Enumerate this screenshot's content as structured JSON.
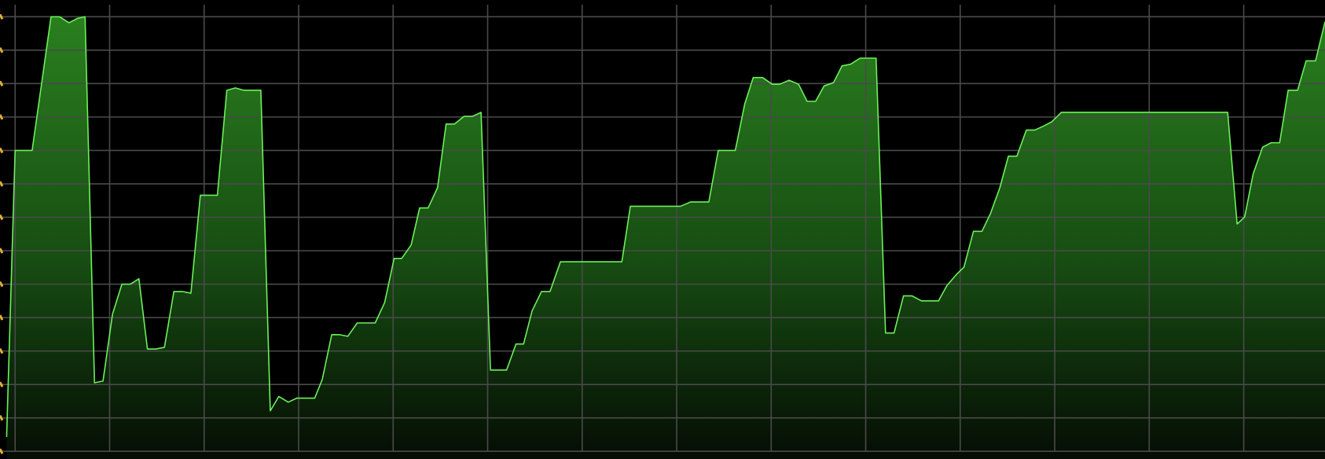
{
  "chart_data": {
    "type": "area",
    "color": "#6cf05a",
    "grid": true,
    "xlim": [
      -0.16,
      13.86
    ],
    "ylim": [
      -0.23,
      13.5
    ],
    "xticks": [
      0,
      1,
      2,
      3,
      4,
      5,
      6,
      7,
      8,
      9,
      10,
      11,
      12,
      13
    ],
    "yticks": [
      0,
      1,
      2,
      3,
      4,
      5,
      6,
      7,
      8,
      9,
      10,
      11,
      12,
      13
    ],
    "x": [
      -0.09,
      0,
      0.18,
      0.38,
      0.47,
      0.57,
      0.66,
      0.74,
      0.84,
      0.93,
      1.03,
      1.13,
      1.22,
      1.31,
      1.4,
      1.49,
      1.58,
      1.68,
      1.77,
      1.86,
      1.96,
      2.14,
      2.24,
      2.33,
      2.42,
      2.6,
      2.7,
      2.79,
      2.89,
      2.98,
      3.17,
      3.25,
      3.35,
      3.43,
      3.52,
      3.62,
      3.81,
      3.91,
      4.01,
      4.09,
      4.19,
      4.28,
      4.37,
      4.47,
      4.56,
      4.65,
      4.75,
      4.84,
      4.93,
      5.03,
      5.2,
      5.3,
      5.38,
      5.47,
      5.57,
      5.66,
      5.77,
      6.42,
      6.51,
      7.04,
      7.15,
      7.34,
      7.44,
      7.62,
      7.72,
      7.81,
      7.91,
      8.01,
      8.09,
      8.19,
      8.29,
      8.38,
      8.47,
      8.56,
      8.66,
      8.75,
      8.84,
      8.94,
      9.11,
      9.21,
      9.3,
      9.4,
      9.49,
      9.59,
      9.77,
      9.86,
      9.96,
      10.04,
      10.14,
      10.23,
      10.32,
      10.42,
      10.51,
      10.6,
      10.7,
      10.79,
      10.89,
      10.97,
      11.07,
      12.83,
      12.93,
      13.01,
      13.1,
      13.2,
      13.29,
      13.38,
      13.47,
      13.57,
      13.66,
      13.76,
      13.86
    ],
    "values": [
      0.43,
      9.0,
      9.0,
      13.0,
      13.0,
      12.82,
      12.95,
      13.0,
      2.05,
      2.1,
      4.1,
      5.0,
      5.0,
      5.16,
      3.06,
      3.06,
      3.11,
      4.78,
      4.78,
      4.73,
      7.66,
      7.66,
      10.8,
      10.87,
      10.8,
      10.8,
      1.21,
      1.64,
      1.47,
      1.59,
      1.59,
      2.15,
      3.49,
      3.49,
      3.44,
      3.84,
      3.84,
      4.45,
      5.77,
      5.77,
      6.17,
      7.28,
      7.28,
      7.89,
      9.79,
      9.79,
      10.02,
      10.02,
      10.14,
      2.43,
      2.43,
      3.21,
      3.21,
      4.2,
      4.78,
      4.78,
      5.67,
      5.67,
      7.33,
      7.33,
      7.46,
      7.46,
      9.0,
      9.0,
      10.39,
      11.18,
      11.18,
      10.98,
      10.98,
      11.1,
      10.98,
      10.47,
      10.47,
      10.93,
      11.03,
      11.53,
      11.58,
      11.76,
      11.76,
      3.54,
      3.54,
      4.65,
      4.65,
      4.5,
      4.5,
      4.96,
      5.29,
      5.51,
      6.58,
      6.58,
      7.11,
      7.89,
      8.83,
      8.83,
      9.61,
      9.61,
      9.74,
      9.86,
      10.14,
      10.14,
      6.8,
      7.01,
      8.3,
      9.1,
      9.23,
      9.23,
      10.8,
      10.8,
      11.68,
      11.68,
      12.85
    ]
  }
}
